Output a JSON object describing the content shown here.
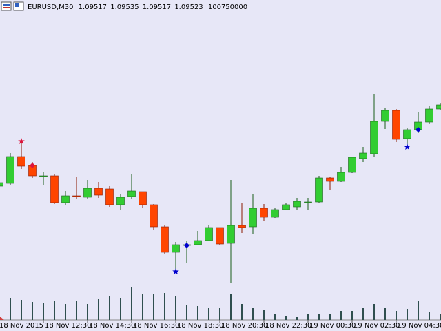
{
  "chart_data": {
    "type": "candlestick",
    "header": {
      "symbol": "EURUSD,M30",
      "open": 1.09517,
      "high": 1.09535,
      "low": 1.09517,
      "close": 1.09523,
      "volume": 100750000
    },
    "categories": [
      "18 Nov 2015",
      null,
      null,
      null,
      "18 Nov 12:30",
      null,
      null,
      null,
      "18 Nov 14:30",
      null,
      null,
      null,
      "18 Nov 16:30",
      null,
      null,
      null,
      "18 Nov 18:30",
      null,
      null,
      null,
      "18 Nov 20:30",
      null,
      null,
      null,
      "18 Nov 22:30",
      null,
      null,
      null,
      "19 Nov 00:30",
      null,
      null,
      null,
      "19 Nov 02:30",
      null,
      null,
      null,
      "19 Nov 04:30",
      null,
      null,
      null,
      null
    ],
    "open": [
      1.0929,
      1.09298,
      1.09376,
      1.0935,
      1.0932,
      1.0932,
      1.09242,
      1.09262,
      1.09258,
      1.09284,
      1.09282,
      1.09236,
      1.0926,
      1.09274,
      1.09236,
      1.09172,
      1.09098,
      1.09118,
      1.0912,
      1.09132,
      1.0917,
      1.09124,
      1.09176,
      1.09172,
      1.09226,
      1.092,
      1.09222,
      1.0923,
      1.09242,
      1.09244,
      1.09314,
      1.09304,
      1.0933,
      1.0937,
      1.09384,
      1.09478,
      1.0951,
      1.09428,
      1.09454,
      1.09476,
      1.09514
    ],
    "high": [
      1.09302,
      1.09386,
      1.09424,
      1.0936,
      1.0933,
      1.09326,
      1.09276,
      1.09316,
      1.09308,
      1.09302,
      1.0929,
      1.09268,
      1.09326,
      1.09274,
      1.09238,
      1.09176,
      1.09128,
      1.0913,
      1.0916,
      1.09178,
      1.0917,
      1.09308,
      1.0924,
      1.09268,
      1.09238,
      1.09226,
      1.09242,
      1.09256,
      1.09256,
      1.0932,
      1.09316,
      1.09346,
      1.09374,
      1.09404,
      1.09558,
      1.09516,
      1.09514,
      1.0946,
      1.09506,
      1.09524,
      1.0953
    ],
    "low": [
      1.0929,
      1.09292,
      1.0934,
      1.09314,
      1.09294,
      1.09238,
      1.09234,
      1.09252,
      1.09252,
      1.09256,
      1.0923,
      1.09222,
      1.09254,
      1.09226,
      1.09164,
      1.09094,
      1.09042,
      1.09068,
      1.0912,
      1.0913,
      1.09118,
      1.0901,
      1.09154,
      1.0915,
      1.0919,
      1.09198,
      1.0922,
      1.09222,
      1.0922,
      1.0924,
      1.09278,
      1.09302,
      1.09328,
      1.0936,
      1.09376,
      1.09456,
      1.09418,
      1.09406,
      1.09444,
      1.0947,
      1.0951
    ],
    "close": [
      1.093,
      1.09376,
      1.09348,
      1.0932,
      1.0932,
      1.09242,
      1.09262,
      1.0926,
      1.09284,
      1.09264,
      1.09236,
      1.09258,
      1.09276,
      1.09236,
      1.09172,
      1.09098,
      1.0912,
      1.0912,
      1.09132,
      1.0917,
      1.09122,
      1.09176,
      1.0917,
      1.09226,
      1.092,
      1.09222,
      1.09236,
      1.09246,
      1.09244,
      1.09314,
      1.09304,
      1.0933,
      1.09374,
      1.09386,
      1.09478,
      1.0951,
      1.09426,
      1.09454,
      1.09476,
      1.09514,
      1.09526
    ],
    "ylim": [
      1.0887,
      1.0983
    ],
    "up_color": "#32cd32",
    "down_color": "#ff4500",
    "volume": {
      "values": [
        0,
        32,
        29,
        26,
        24,
        27,
        23,
        28,
        23,
        30,
        35,
        32,
        48,
        37,
        37,
        39,
        35,
        21,
        20,
        17,
        17,
        37,
        23,
        17,
        15,
        9,
        6,
        4,
        8,
        8,
        8,
        13,
        13,
        17,
        23,
        18,
        13,
        16,
        27,
        11,
        9
      ],
      "ylim": [
        0,
        60
      ],
      "color": "#2f4f4f"
    }
  }
}
